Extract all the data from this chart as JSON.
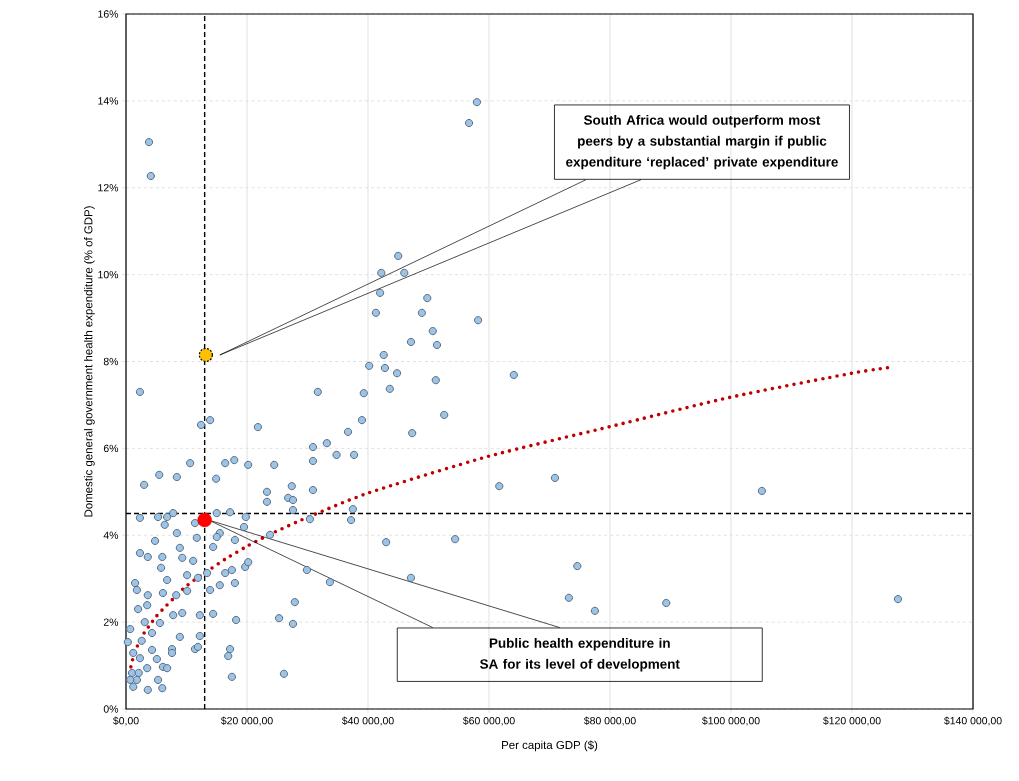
{
  "chart_data": {
    "type": "scatter",
    "xlabel": "Per capita GDP ($)",
    "ylabel": "Domestic general government health expenditure (% of GDP)",
    "xlim": [
      0,
      140000
    ],
    "ylim": [
      0,
      16
    ],
    "xticks": [
      {
        "value": 0,
        "label": "$0,00"
      },
      {
        "value": 20000,
        "label": "$20 000,00"
      },
      {
        "value": 40000,
        "label": "$40 000,00"
      },
      {
        "value": 60000,
        "label": "$60 000,00"
      },
      {
        "value": 80000,
        "label": "$80 000,00"
      },
      {
        "value": 100000,
        "label": "$100 000,00"
      },
      {
        "value": 120000,
        "label": "$120 000,00"
      },
      {
        "value": 140000,
        "label": "$140 000,00"
      }
    ],
    "yticks": [
      {
        "value": 0,
        "label": "0%"
      },
      {
        "value": 2,
        "label": "2%"
      },
      {
        "value": 4,
        "label": "4%"
      },
      {
        "value": 6,
        "label": "6%"
      },
      {
        "value": 8,
        "label": "8%"
      },
      {
        "value": 10,
        "label": "10%"
      },
      {
        "value": 12,
        "label": "12%"
      },
      {
        "value": 14,
        "label": "14%"
      },
      {
        "value": 16,
        "label": "16%"
      }
    ],
    "grid": true,
    "marker": "circle",
    "series": [
      {
        "color": "#9dc3e6",
        "x": [
          3800,
          4100,
          56700,
          58000,
          2300,
          45000,
          46000,
          42200,
          42000,
          41300,
          49800,
          48900,
          50700,
          58200,
          47100,
          51400,
          42600,
          42800,
          44800,
          43600,
          40200,
          39300,
          31700,
          51200,
          64100,
          52600,
          39000,
          47300,
          36700,
          33200,
          30900,
          34800,
          37700,
          30900,
          61700,
          70900,
          105100,
          54400,
          43000,
          74600,
          73200,
          77500,
          89300,
          127600,
          47100,
          30900,
          37500,
          37200,
          30400,
          33700,
          29900,
          12400,
          13900,
          21800,
          10600,
          16400,
          17900,
          20200,
          24500,
          5500,
          8400,
          3000,
          14900,
          23300,
          23300,
          26800,
          27400,
          27600,
          27600,
          2300,
          5300,
          6800,
          7800,
          6400,
          8400,
          11400,
          15000,
          17200,
          19800,
          19500,
          15500,
          15000,
          11700,
          14400,
          4800,
          8900,
          18000,
          23800,
          27900,
          25300,
          27600,
          2300,
          3600,
          6000,
          5800,
          9300,
          11100,
          6800,
          10100,
          11900,
          13400,
          16400,
          17500,
          19700,
          20200,
          18000,
          15500,
          13900,
          10100,
          8300,
          6100,
          1500,
          1800,
          3600,
          2000,
          3500,
          7800,
          9300,
          12200,
          14400,
          18200,
          5600,
          700,
          3100,
          4300,
          8900,
          12200,
          300,
          2600,
          4300,
          7600,
          11400,
          11900,
          17200,
          16900,
          1200,
          2300,
          5100,
          6100,
          6800,
          3500,
          1000,
          1800,
          700,
          1200,
          3600,
          6000,
          17500,
          26100,
          2100,
          5300,
          7600
        ],
        "values": [
          13.05,
          12.27,
          13.49,
          13.97,
          7.3,
          10.43,
          10.04,
          10.04,
          9.58,
          9.12,
          9.46,
          9.12,
          8.7,
          8.95,
          8.45,
          8.38,
          8.15,
          7.85,
          7.73,
          7.37,
          7.9,
          7.27,
          7.3,
          7.57,
          7.69,
          6.77,
          6.65,
          6.35,
          6.38,
          6.12,
          6.03,
          5.85,
          5.85,
          5.71,
          5.13,
          5.32,
          5.02,
          3.91,
          3.84,
          3.29,
          2.56,
          2.26,
          2.44,
          2.53,
          3.02,
          5.04,
          4.6,
          4.35,
          4.37,
          2.92,
          3.2,
          6.54,
          6.65,
          6.49,
          5.66,
          5.66,
          5.73,
          5.62,
          5.62,
          5.39,
          5.34,
          5.16,
          5.3,
          5.0,
          4.77,
          4.86,
          5.13,
          4.81,
          4.58,
          4.4,
          4.42,
          4.42,
          4.51,
          4.24,
          4.05,
          4.28,
          4.51,
          4.53,
          4.42,
          4.19,
          4.05,
          3.96,
          3.94,
          3.73,
          3.87,
          3.71,
          3.89,
          4.01,
          2.46,
          2.09,
          1.96,
          3.59,
          3.5,
          3.5,
          3.25,
          3.48,
          3.41,
          2.97,
          3.08,
          3.02,
          3.13,
          3.13,
          3.2,
          3.27,
          3.38,
          2.9,
          2.85,
          2.74,
          2.72,
          2.62,
          2.67,
          2.9,
          2.74,
          2.62,
          2.3,
          2.39,
          2.16,
          2.21,
          2.16,
          2.19,
          2.05,
          1.98,
          1.84,
          2.0,
          1.75,
          1.66,
          1.68,
          1.54,
          1.57,
          1.36,
          1.38,
          1.38,
          1.43,
          1.38,
          1.22,
          1.29,
          1.17,
          1.15,
          0.97,
          0.94,
          0.94,
          0.83,
          0.67,
          0.67,
          0.51,
          0.44,
          0.48,
          0.74,
          0.81,
          0.83,
          0.67,
          1.29
        ]
      },
      {
        "type": "line",
        "color": "#c00000",
        "line_style": "dotted",
        "marker": "none",
        "x": [
          800,
          1300,
          2100,
          3000,
          4300,
          5500,
          9800,
          13000,
          16400,
          19800,
          23500,
          29000,
          40000,
          60000,
          80000,
          100000,
          120000,
          126600
        ],
        "values": [
          0.97,
          1.24,
          1.52,
          1.75,
          2.0,
          2.21,
          2.81,
          3.13,
          3.45,
          3.73,
          4.0,
          4.35,
          4.97,
          5.82,
          6.5,
          7.18,
          7.73,
          7.87
        ]
      },
      {
        "type": "scatter",
        "color": "#ff0000",
        "x": [
          13000
        ],
        "values": [
          4.35
        ]
      },
      {
        "type": "scatter",
        "color": "#ffc000",
        "x": [
          13200
        ],
        "values": [
          8.15
        ]
      }
    ],
    "ref_lines": [
      {
        "axis": "x",
        "value": 13000,
        "color": "#000000",
        "line_style": "dashed"
      },
      {
        "axis": "y",
        "value": 4.5,
        "color": "#000000",
        "line_style": "dashed"
      }
    ],
    "annotations": [
      "South Africa would outperform most peers by a substantial margin if public expenditure ‘replaced’ private expenditure",
      "Public health expenditure in SA for its level of development"
    ]
  }
}
